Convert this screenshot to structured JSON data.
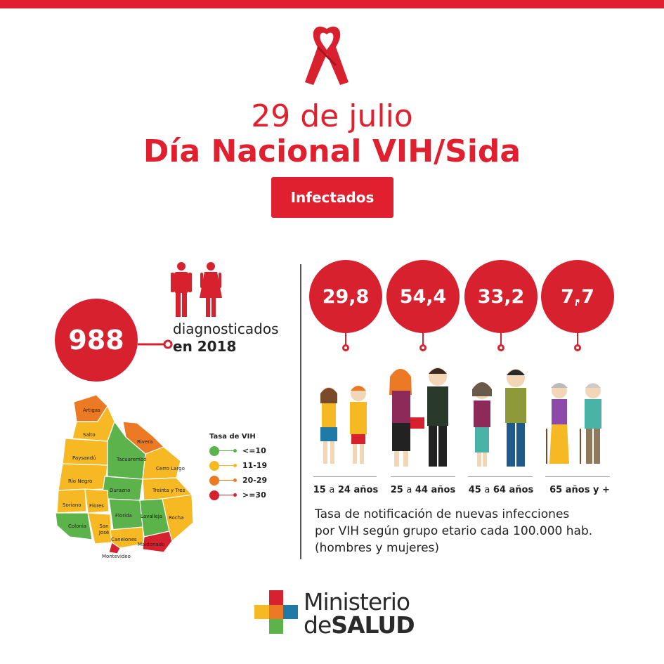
{
  "colors": {
    "accent": "#e0202e",
    "green": "#5db34b",
    "yellow": "#f6b924",
    "orange": "#ec7a24",
    "red": "#d7212e"
  },
  "header": {
    "date": "29 de julio",
    "title": "Día Nacional VIH/Sida",
    "badge": "Infectados"
  },
  "diagnosed": {
    "count": "988",
    "label_line1": "diagnosticados",
    "label_line2": "en 2018"
  },
  "map": {
    "departments": [
      "Artigas",
      "Salto",
      "Rivera",
      "Paysandú",
      "Tacuarembó",
      "Cerro Largo",
      "Río Negro",
      "Durazno",
      "Treinta y Tres",
      "Soriano",
      "Flores",
      "Florida",
      "Lavalleja",
      "Rocha",
      "Colonia",
      "San José",
      "Canelones",
      "Maldonado",
      "Montevideo"
    ],
    "legend_title": "Tasa de VIH",
    "legend": [
      {
        "label": "<=10",
        "color": "#5db34b"
      },
      {
        "label": "11-19",
        "color": "#f6b924"
      },
      {
        "label": "20-29",
        "color": "#ec7a24"
      },
      {
        "label": ">=30",
        "color": "#d7212e"
      }
    ]
  },
  "age_groups": [
    {
      "rate": "29,8",
      "range_a": "15",
      "sep": "a",
      "range_b": "24",
      "unit": "años"
    },
    {
      "rate": "54,4",
      "range_a": "25",
      "sep": "a",
      "range_b": "44",
      "unit": "años"
    },
    {
      "rate": "33,2",
      "range_a": "45",
      "sep": "a",
      "range_b": "64",
      "unit": "años"
    },
    {
      "rate": "7,7",
      "range_a": "65",
      "sep": "años y",
      "range_b": "+",
      "unit": ""
    }
  ],
  "description": {
    "line1": "Tasa de notificación de nuevas infecciones",
    "line2": "por VIH según grupo etario cada 100.000 hab.",
    "line3": "(hombres y mujeres)"
  },
  "logo": {
    "line1": "Ministerio",
    "line2_a": "de",
    "line2_b": "SALUD"
  }
}
